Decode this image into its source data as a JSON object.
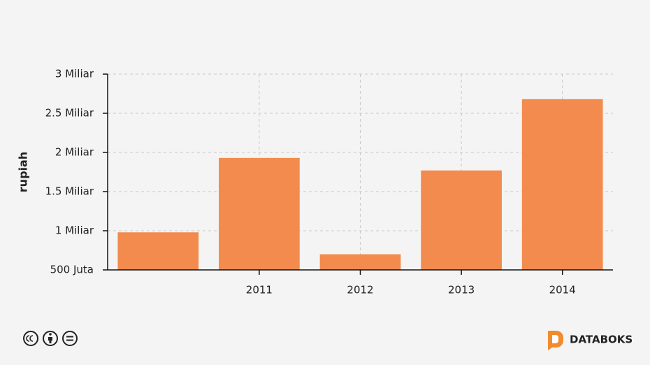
{
  "chart_data": {
    "type": "bar",
    "y_label": "rupiah",
    "categories": [
      null,
      "2011",
      "2012",
      "2013",
      "2014"
    ],
    "values": [
      980000000,
      1930000000,
      700000000,
      1770000000,
      2680000000
    ],
    "color": "#f28b4d",
    "ylim": [
      500000000,
      3000000000
    ],
    "yticks": [
      {
        "value": 500000000,
        "label": "500 Juta"
      },
      {
        "value": 1000000000,
        "label": "1 Miliar"
      },
      {
        "value": 1500000000,
        "label": "1.5 Miliar"
      },
      {
        "value": 2000000000,
        "label": "2 Miliar"
      },
      {
        "value": 2500000000,
        "label": "2.5 Miliar"
      },
      {
        "value": 3000000000,
        "label": "3 Miliar"
      }
    ],
    "grid": true
  },
  "footer": {
    "brand": "DATABOKS"
  }
}
